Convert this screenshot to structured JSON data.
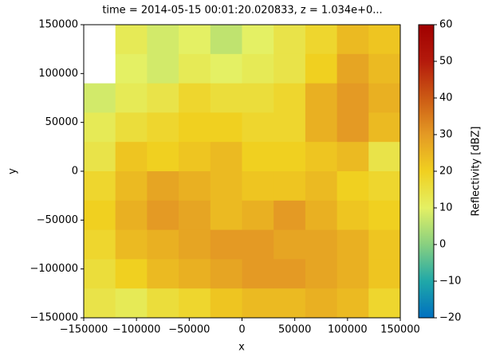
{
  "chart_data": {
    "type": "heatmap",
    "title": "time = 2014-05-15 00:01:20.020833, z = 1.034e+0...",
    "x_label": "x",
    "y_label": "y",
    "colorbar_label": "Reflectivity [dBZ]",
    "x": [
      -135000,
      -105000,
      -75000,
      -45000,
      -15000,
      15000,
      45000,
      75000,
      105000,
      135000
    ],
    "y": [
      135000,
      105000,
      75000,
      45000,
      15000,
      -15000,
      -45000,
      -75000,
      -105000,
      -135000
    ],
    "z": [
      [
        null,
        12,
        8,
        10,
        6,
        10,
        14,
        18,
        24,
        22
      ],
      [
        null,
        10,
        8,
        12,
        10,
        12,
        14,
        20,
        28,
        24
      ],
      [
        8,
        12,
        14,
        18,
        16,
        16,
        18,
        26,
        30,
        26
      ],
      [
        12,
        16,
        18,
        20,
        20,
        18,
        18,
        26,
        30,
        24
      ],
      [
        14,
        22,
        20,
        22,
        24,
        20,
        20,
        22,
        24,
        14
      ],
      [
        18,
        24,
        28,
        26,
        24,
        22,
        22,
        24,
        20,
        18
      ],
      [
        20,
        26,
        30,
        28,
        24,
        26,
        30,
        26,
        22,
        20
      ],
      [
        18,
        24,
        26,
        28,
        30,
        30,
        28,
        28,
        26,
        22
      ],
      [
        16,
        20,
        24,
        26,
        28,
        30,
        30,
        28,
        26,
        22
      ],
      [
        14,
        12,
        16,
        18,
        22,
        24,
        24,
        26,
        24,
        18
      ]
    ],
    "xlim": [
      -150000,
      150000
    ],
    "ylim": [
      -150000,
      150000
    ],
    "xticks": [
      {
        "value": -150000,
        "label": "−150000"
      },
      {
        "value": -100000,
        "label": "−100000"
      },
      {
        "value": -50000,
        "label": "−50000"
      },
      0,
      50000,
      100000,
      150000
    ],
    "yticks": [
      {
        "value": -150000,
        "label": "−150000"
      },
      {
        "value": -100000,
        "label": "−100000"
      },
      {
        "value": -50000,
        "label": "−50000"
      },
      0,
      50000,
      100000,
      150000
    ],
    "clim": [
      -20,
      60
    ],
    "cticks": [
      {
        "value": -20,
        "label": "−20"
      },
      {
        "value": -10,
        "label": "−10"
      },
      0,
      10,
      20,
      30,
      40,
      50,
      60
    ],
    "colormap": [
      "#0070c0",
      "#20a8a8",
      "#88d080",
      "#e4f064",
      "#f0d020",
      "#e49a24",
      "#cc5a14",
      "#b41a0c",
      "#a00000"
    ]
  }
}
